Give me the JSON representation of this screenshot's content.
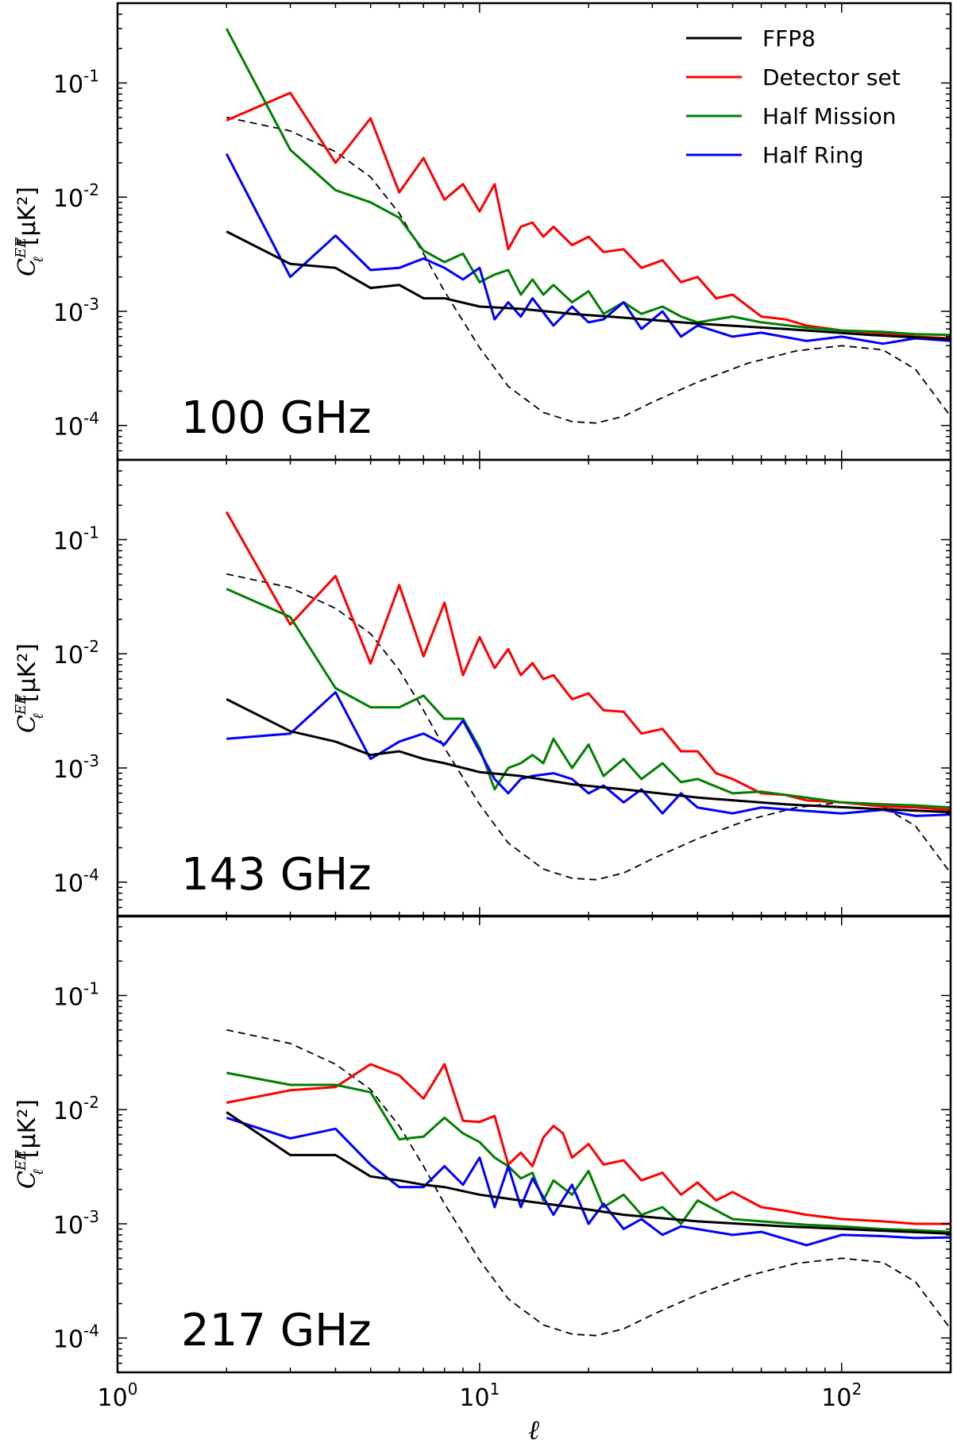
{
  "chart_data": {
    "type": "line",
    "xscale": "log",
    "yscale": "log",
    "xlim": [
      1,
      200
    ],
    "ylim": [
      5e-05,
      0.5
    ],
    "xlabel": "ℓ",
    "ylabel": {
      "main": "C",
      "sup": "EE",
      "sub": "ℓ",
      "units": "[μK²]"
    },
    "grid": false,
    "legend_placement": "top-right",
    "x_ticks": [
      {
        "value": 1,
        "base": "10",
        "exp": "0"
      },
      {
        "value": 10,
        "base": "10",
        "exp": "1"
      },
      {
        "value": 100,
        "base": "10",
        "exp": "2"
      }
    ],
    "y_ticks": [
      {
        "value": 0.1,
        "base": "10",
        "exp": "-1"
      },
      {
        "value": 0.01,
        "base": "10",
        "exp": "-2"
      },
      {
        "value": 0.001,
        "base": "10",
        "exp": "-3"
      },
      {
        "value": 0.0001,
        "base": "10",
        "exp": "-4"
      }
    ],
    "series_styles": [
      {
        "key": "ffp8",
        "name": "FFP8",
        "color": "#000000",
        "width": 3
      },
      {
        "key": "detset",
        "name": "Detector set",
        "color": "#ff0000",
        "width": 3
      },
      {
        "key": "halfmission",
        "name": "Half Mission",
        "color": "#008000",
        "width": 3
      },
      {
        "key": "halfring",
        "name": "Half Ring",
        "color": "#0000ff",
        "width": 3
      }
    ],
    "theory_curve": {
      "style": "dashed",
      "color": "#000000",
      "x": [
        2,
        3,
        4,
        5,
        6,
        7,
        8,
        10,
        12,
        15,
        18,
        21,
        25,
        30,
        40,
        55,
        75,
        100,
        130,
        160,
        200
      ],
      "y": [
        0.05,
        0.038,
        0.025,
        0.015,
        0.0072,
        0.0032,
        0.0015,
        0.00048,
        0.00022,
        0.00013,
        0.000108,
        0.000105,
        0.00012,
        0.00016,
        0.00024,
        0.00035,
        0.00045,
        0.0005,
        0.00046,
        0.00031,
        0.00012
      ]
    },
    "panels": [
      {
        "label": "100 GHz",
        "series": {
          "ffp8": {
            "x": [
              2,
              3,
              4,
              5,
              6,
              7,
              8,
              10,
              13,
              18,
              25,
              40,
              70,
              120,
              200
            ],
            "y": [
              0.005,
              0.0026,
              0.0024,
              0.0016,
              0.0017,
              0.0013,
              0.0013,
              0.0011,
              0.00105,
              0.00095,
              0.00088,
              0.00078,
              0.0007,
              0.00062,
              0.00057
            ]
          },
          "detset": {
            "x": [
              2,
              3,
              4,
              5,
              6,
              7,
              8,
              9,
              10,
              11,
              12,
              13,
              14,
              15,
              16,
              18,
              20,
              22,
              25,
              28,
              32,
              36,
              40,
              45,
              50,
              60,
              70,
              80,
              100,
              130,
              160,
              200
            ],
            "y": [
              0.047,
              0.082,
              0.02,
              0.049,
              0.011,
              0.022,
              0.0095,
              0.013,
              0.0075,
              0.013,
              0.0035,
              0.0055,
              0.006,
              0.0045,
              0.0055,
              0.0038,
              0.0045,
              0.0033,
              0.0035,
              0.0024,
              0.0028,
              0.0018,
              0.002,
              0.0013,
              0.0014,
              0.0009,
              0.00085,
              0.00075,
              0.00068,
              0.00064,
              0.0006,
              0.00058
            ]
          },
          "halfmission": {
            "x": [
              2,
              3,
              4,
              5,
              6,
              7,
              8,
              9,
              10,
              11,
              12,
              13,
              14,
              15,
              16,
              18,
              20,
              22,
              25,
              28,
              32,
              36,
              40,
              50,
              60,
              80,
              100,
              130,
              160,
              200
            ],
            "y": [
              0.3,
              0.026,
              0.0115,
              0.009,
              0.0066,
              0.0034,
              0.0027,
              0.0032,
              0.0018,
              0.0021,
              0.0023,
              0.0014,
              0.0019,
              0.0014,
              0.0017,
              0.0012,
              0.0015,
              0.00095,
              0.0012,
              0.00095,
              0.0011,
              0.0009,
              0.0008,
              0.0009,
              0.0008,
              0.00072,
              0.00068,
              0.00066,
              0.00063,
              0.00062
            ]
          },
          "halfring": {
            "x": [
              2,
              3,
              4,
              5,
              6,
              7,
              8,
              9,
              10,
              11,
              12,
              13,
              14,
              16,
              18,
              20,
              22,
              25,
              28,
              32,
              36,
              40,
              50,
              60,
              80,
              100,
              130,
              160,
              200
            ],
            "y": [
              0.024,
              0.002,
              0.0046,
              0.0023,
              0.0024,
              0.0029,
              0.0024,
              0.0019,
              0.0024,
              0.00085,
              0.0012,
              0.0009,
              0.0013,
              0.00075,
              0.0011,
              0.0008,
              0.00085,
              0.0012,
              0.0007,
              0.001,
              0.0006,
              0.00075,
              0.0006,
              0.00065,
              0.00055,
              0.0006,
              0.00052,
              0.00058,
              0.00055
            ]
          }
        }
      },
      {
        "label": "143 GHz",
        "series": {
          "ffp8": {
            "x": [
              2,
              3,
              4,
              5,
              6,
              7,
              8,
              10,
              13,
              18,
              25,
              40,
              70,
              120,
              200
            ],
            "y": [
              0.004,
              0.0021,
              0.0017,
              0.0013,
              0.0014,
              0.0012,
              0.0011,
              0.00092,
              0.00085,
              0.00072,
              0.00065,
              0.00055,
              0.00048,
              0.00044,
              0.00041
            ]
          },
          "detset": {
            "x": [
              2,
              3,
              4,
              5,
              6,
              7,
              8,
              9,
              10,
              11,
              12,
              13,
              14,
              15,
              16,
              18,
              20,
              22,
              25,
              28,
              32,
              36,
              40,
              45,
              50,
              60,
              70,
              80,
              100,
              130,
              160,
              200
            ],
            "y": [
              0.175,
              0.018,
              0.048,
              0.0082,
              0.04,
              0.0095,
              0.028,
              0.0065,
              0.014,
              0.0075,
              0.011,
              0.0065,
              0.0083,
              0.006,
              0.0065,
              0.004,
              0.0045,
              0.0032,
              0.0031,
              0.002,
              0.0022,
              0.0014,
              0.0014,
              0.0009,
              0.0008,
              0.0006,
              0.00058,
              0.00052,
              0.0005,
              0.00046,
              0.00045,
              0.00043
            ]
          },
          "halfmission": {
            "x": [
              2,
              3,
              4,
              5,
              6,
              7,
              8,
              9,
              10,
              11,
              12,
              13,
              14,
              15,
              16,
              18,
              20,
              22,
              25,
              28,
              32,
              36,
              40,
              50,
              60,
              80,
              100,
              130,
              160,
              200
            ],
            "y": [
              0.037,
              0.021,
              0.005,
              0.0034,
              0.0034,
              0.0043,
              0.0027,
              0.0027,
              0.0015,
              0.00065,
              0.001,
              0.0011,
              0.0013,
              0.0011,
              0.0018,
              0.001,
              0.0016,
              0.00085,
              0.0012,
              0.0008,
              0.0011,
              0.00075,
              0.0008,
              0.0006,
              0.00062,
              0.00055,
              0.0005,
              0.00048,
              0.00047,
              0.00045
            ]
          },
          "halfring": {
            "x": [
              2,
              3,
              4,
              5,
              6,
              7,
              8,
              9,
              10,
              11,
              12,
              13,
              14,
              16,
              18,
              20,
              22,
              25,
              28,
              32,
              36,
              40,
              50,
              60,
              80,
              100,
              130,
              160,
              200
            ],
            "y": [
              0.0018,
              0.002,
              0.0046,
              0.0012,
              0.0017,
              0.002,
              0.0016,
              0.0026,
              0.0014,
              0.0008,
              0.0006,
              0.0008,
              0.00085,
              0.0009,
              0.0008,
              0.0006,
              0.0007,
              0.0005,
              0.00065,
              0.0004,
              0.0006,
              0.00045,
              0.0004,
              0.00045,
              0.00042,
              0.0004,
              0.00043,
              0.00038,
              0.00039
            ]
          }
        }
      },
      {
        "label": "217 GHz",
        "series": {
          "ffp8": {
            "x": [
              2,
              3,
              4,
              5,
              6,
              7,
              8,
              10,
              13,
              18,
              25,
              40,
              70,
              120,
              200
            ],
            "y": [
              0.0095,
              0.004,
              0.004,
              0.0026,
              0.0024,
              0.0022,
              0.0021,
              0.0018,
              0.0016,
              0.0014,
              0.0012,
              0.00105,
              0.00095,
              0.00088,
              0.00082
            ]
          },
          "detset": {
            "x": [
              2,
              3,
              4,
              5,
              6,
              7,
              8,
              9,
              10,
              11,
              12,
              13,
              14,
              15,
              16,
              17,
              18,
              20,
              22,
              25,
              28,
              32,
              36,
              40,
              45,
              50,
              60,
              70,
              80,
              100,
              130,
              160,
              200
            ],
            "y": [
              0.0115,
              0.0148,
              0.0158,
              0.025,
              0.02,
              0.0125,
              0.025,
              0.008,
              0.0078,
              0.0088,
              0.0033,
              0.0042,
              0.0032,
              0.0057,
              0.0072,
              0.0062,
              0.0038,
              0.005,
              0.0033,
              0.0036,
              0.0024,
              0.0028,
              0.0018,
              0.0023,
              0.0016,
              0.0019,
              0.0014,
              0.0013,
              0.0012,
              0.0011,
              0.00105,
              0.001,
              0.001
            ]
          },
          "halfmission": {
            "x": [
              2,
              3,
              4,
              5,
              6,
              7,
              8,
              9,
              10,
              11,
              12,
              13,
              14,
              15,
              16,
              18,
              20,
              22,
              25,
              28,
              32,
              36,
              40,
              50,
              60,
              80,
              100,
              130,
              160,
              200
            ],
            "y": [
              0.021,
              0.0165,
              0.0165,
              0.0142,
              0.0055,
              0.0058,
              0.0085,
              0.0062,
              0.0052,
              0.0038,
              0.0032,
              0.0025,
              0.0028,
              0.0016,
              0.0024,
              0.0018,
              0.0029,
              0.0014,
              0.0018,
              0.0012,
              0.0014,
              0.001,
              0.0016,
              0.0011,
              0.00105,
              0.00098,
              0.00095,
              0.0009,
              0.00088,
              0.00085
            ]
          },
          "halfring": {
            "x": [
              2,
              3,
              4,
              5,
              6,
              7,
              8,
              9,
              10,
              11,
              12,
              13,
              14,
              16,
              18,
              20,
              22,
              25,
              28,
              32,
              36,
              40,
              50,
              60,
              80,
              100,
              130,
              160,
              200
            ],
            "y": [
              0.0085,
              0.0056,
              0.0068,
              0.0033,
              0.0021,
              0.0021,
              0.0032,
              0.0022,
              0.0038,
              0.0014,
              0.0032,
              0.0014,
              0.0025,
              0.0012,
              0.0022,
              0.001,
              0.0015,
              0.0009,
              0.0011,
              0.0008,
              0.00095,
              0.0009,
              0.0008,
              0.00085,
              0.00065,
              0.0008,
              0.00078,
              0.00075,
              0.00076
            ]
          }
        }
      }
    ]
  }
}
